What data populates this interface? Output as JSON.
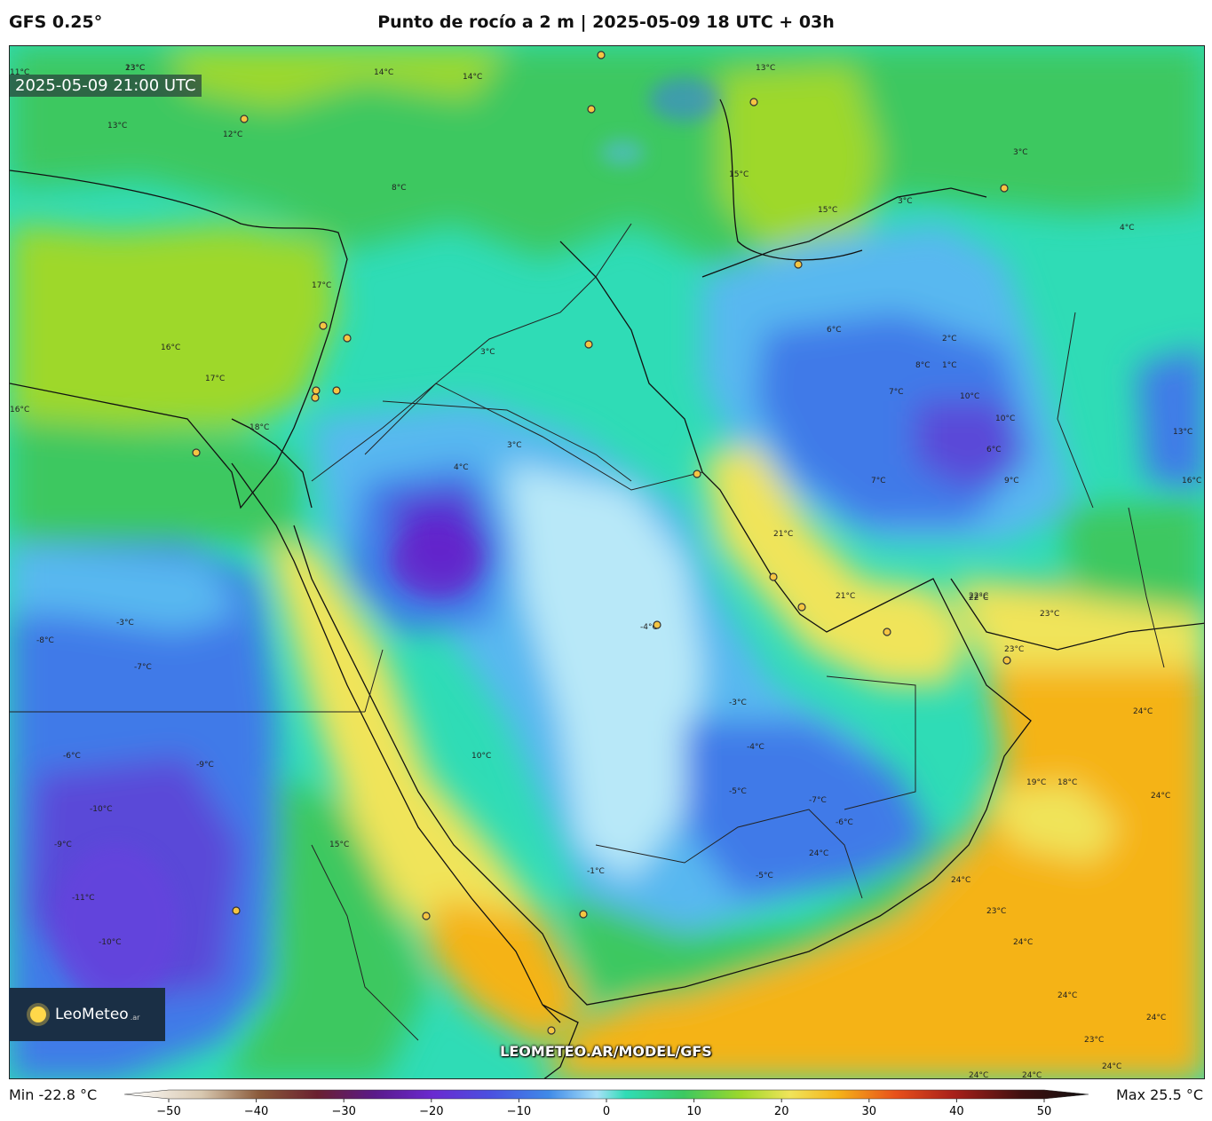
{
  "header": {
    "model": "GFS 0.25°",
    "title": "Punto de rocío a 2 m | 2025-05-09 18 UTC + 03h"
  },
  "valid_time": "2025-05-09 21:00 UTC",
  "logo": {
    "name": "LeoMeteo",
    "suffix": ".ar"
  },
  "watermark": "LEOMETEO.AR/MODEL/GFS",
  "legend": {
    "min_label": "Min -22.8 °C",
    "max_label": "Max 25.5 °C",
    "ticks": [
      "−50",
      "−40",
      "−30",
      "−20",
      "−10",
      "0",
      "10",
      "20",
      "30",
      "40",
      "50"
    ]
  },
  "colors": {
    "very_cold": "#5a2fd0",
    "cold": "#3f7ae8",
    "cool": "#58b8f0",
    "pale": "#b8e8f8",
    "teal": "#2fdcb6",
    "green": "#3cc860",
    "lime": "#9ed82a",
    "yellow": "#f0e45a",
    "orange": "#f5b319"
  },
  "contour_labels": [
    "13°C",
    "14°C",
    "14°C",
    "13°C",
    "11°C",
    "13°C",
    "12°C",
    "8°C",
    "3°C",
    "3°C",
    "4°C",
    "15°C",
    "15°C",
    "16°C",
    "17°C",
    "17°C",
    "16°C",
    "18°C",
    "3°C",
    "2°C",
    "6°C",
    "8°C",
    "7°C",
    "10°C",
    "10°C",
    "6°C",
    "3°C",
    "4°C",
    "7°C",
    "1°C",
    "13°C",
    "16°C",
    "9°C",
    "21°C",
    "21°C",
    "22°C",
    "23°C",
    "23°C",
    "24°C",
    "22°C",
    "19°C",
    "18°C",
    "24°C",
    "-8°C",
    "-3°C",
    "-7°C",
    "-6°C",
    "-9°C",
    "-10°C",
    "-11°C",
    "-10°C",
    "-9°C",
    "15°C",
    "10°C",
    "-4°C",
    "-3°C",
    "-4°C",
    "-5°C",
    "-7°C",
    "-6°C",
    "-1°C",
    "-5°C",
    "24°C",
    "24°C",
    "23°C",
    "24°C",
    "24°C",
    "24°C",
    "23°C",
    "24°C",
    "24°C",
    "24°C",
    "23°C"
  ]
}
